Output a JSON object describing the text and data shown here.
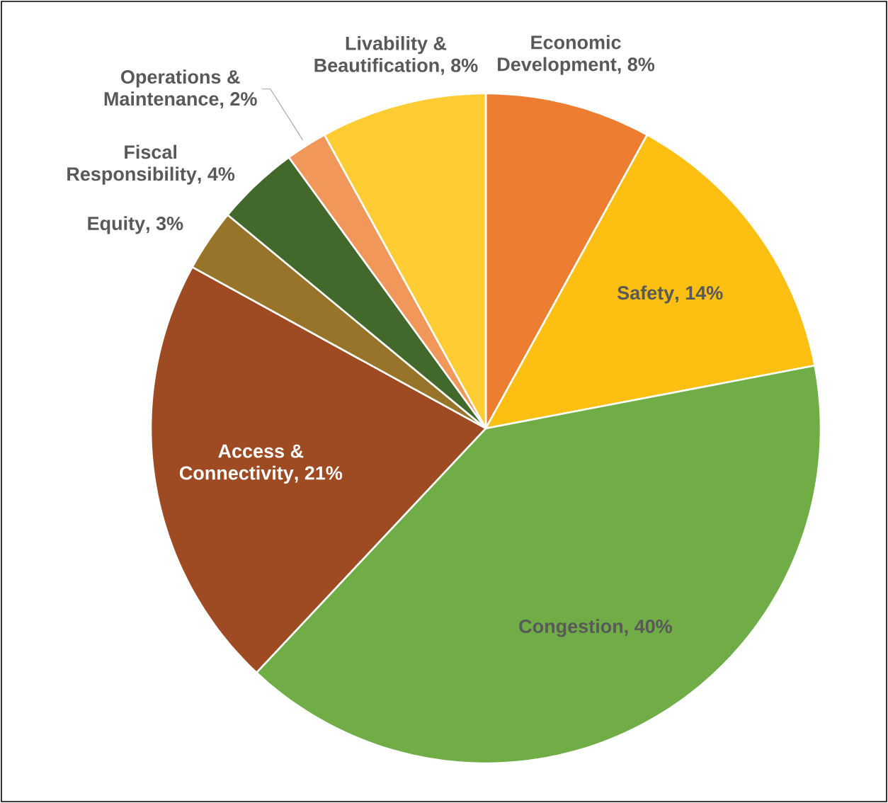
{
  "chart_data": {
    "type": "pie",
    "categories": [
      "Economic Development",
      "Safety",
      "Congestion",
      "Access & Connectivity",
      "Equity",
      "Fiscal Responsibility",
      "Operations & Maintenance",
      "Livability & Beautification"
    ],
    "values": [
      8,
      14,
      40,
      21,
      3,
      4,
      2,
      8
    ],
    "value_labels": [
      ", 8%",
      ", 14%",
      ", 40%",
      ", 21%",
      ", 3%",
      ", 4%",
      ", 2%",
      ", 8%"
    ],
    "colors": [
      "#ed7d31",
      "#fcbf12",
      "#70ad47",
      "#9e4a23",
      "#977429",
      "#43682b",
      "#f1975a",
      "#ffcd33"
    ]
  }
}
